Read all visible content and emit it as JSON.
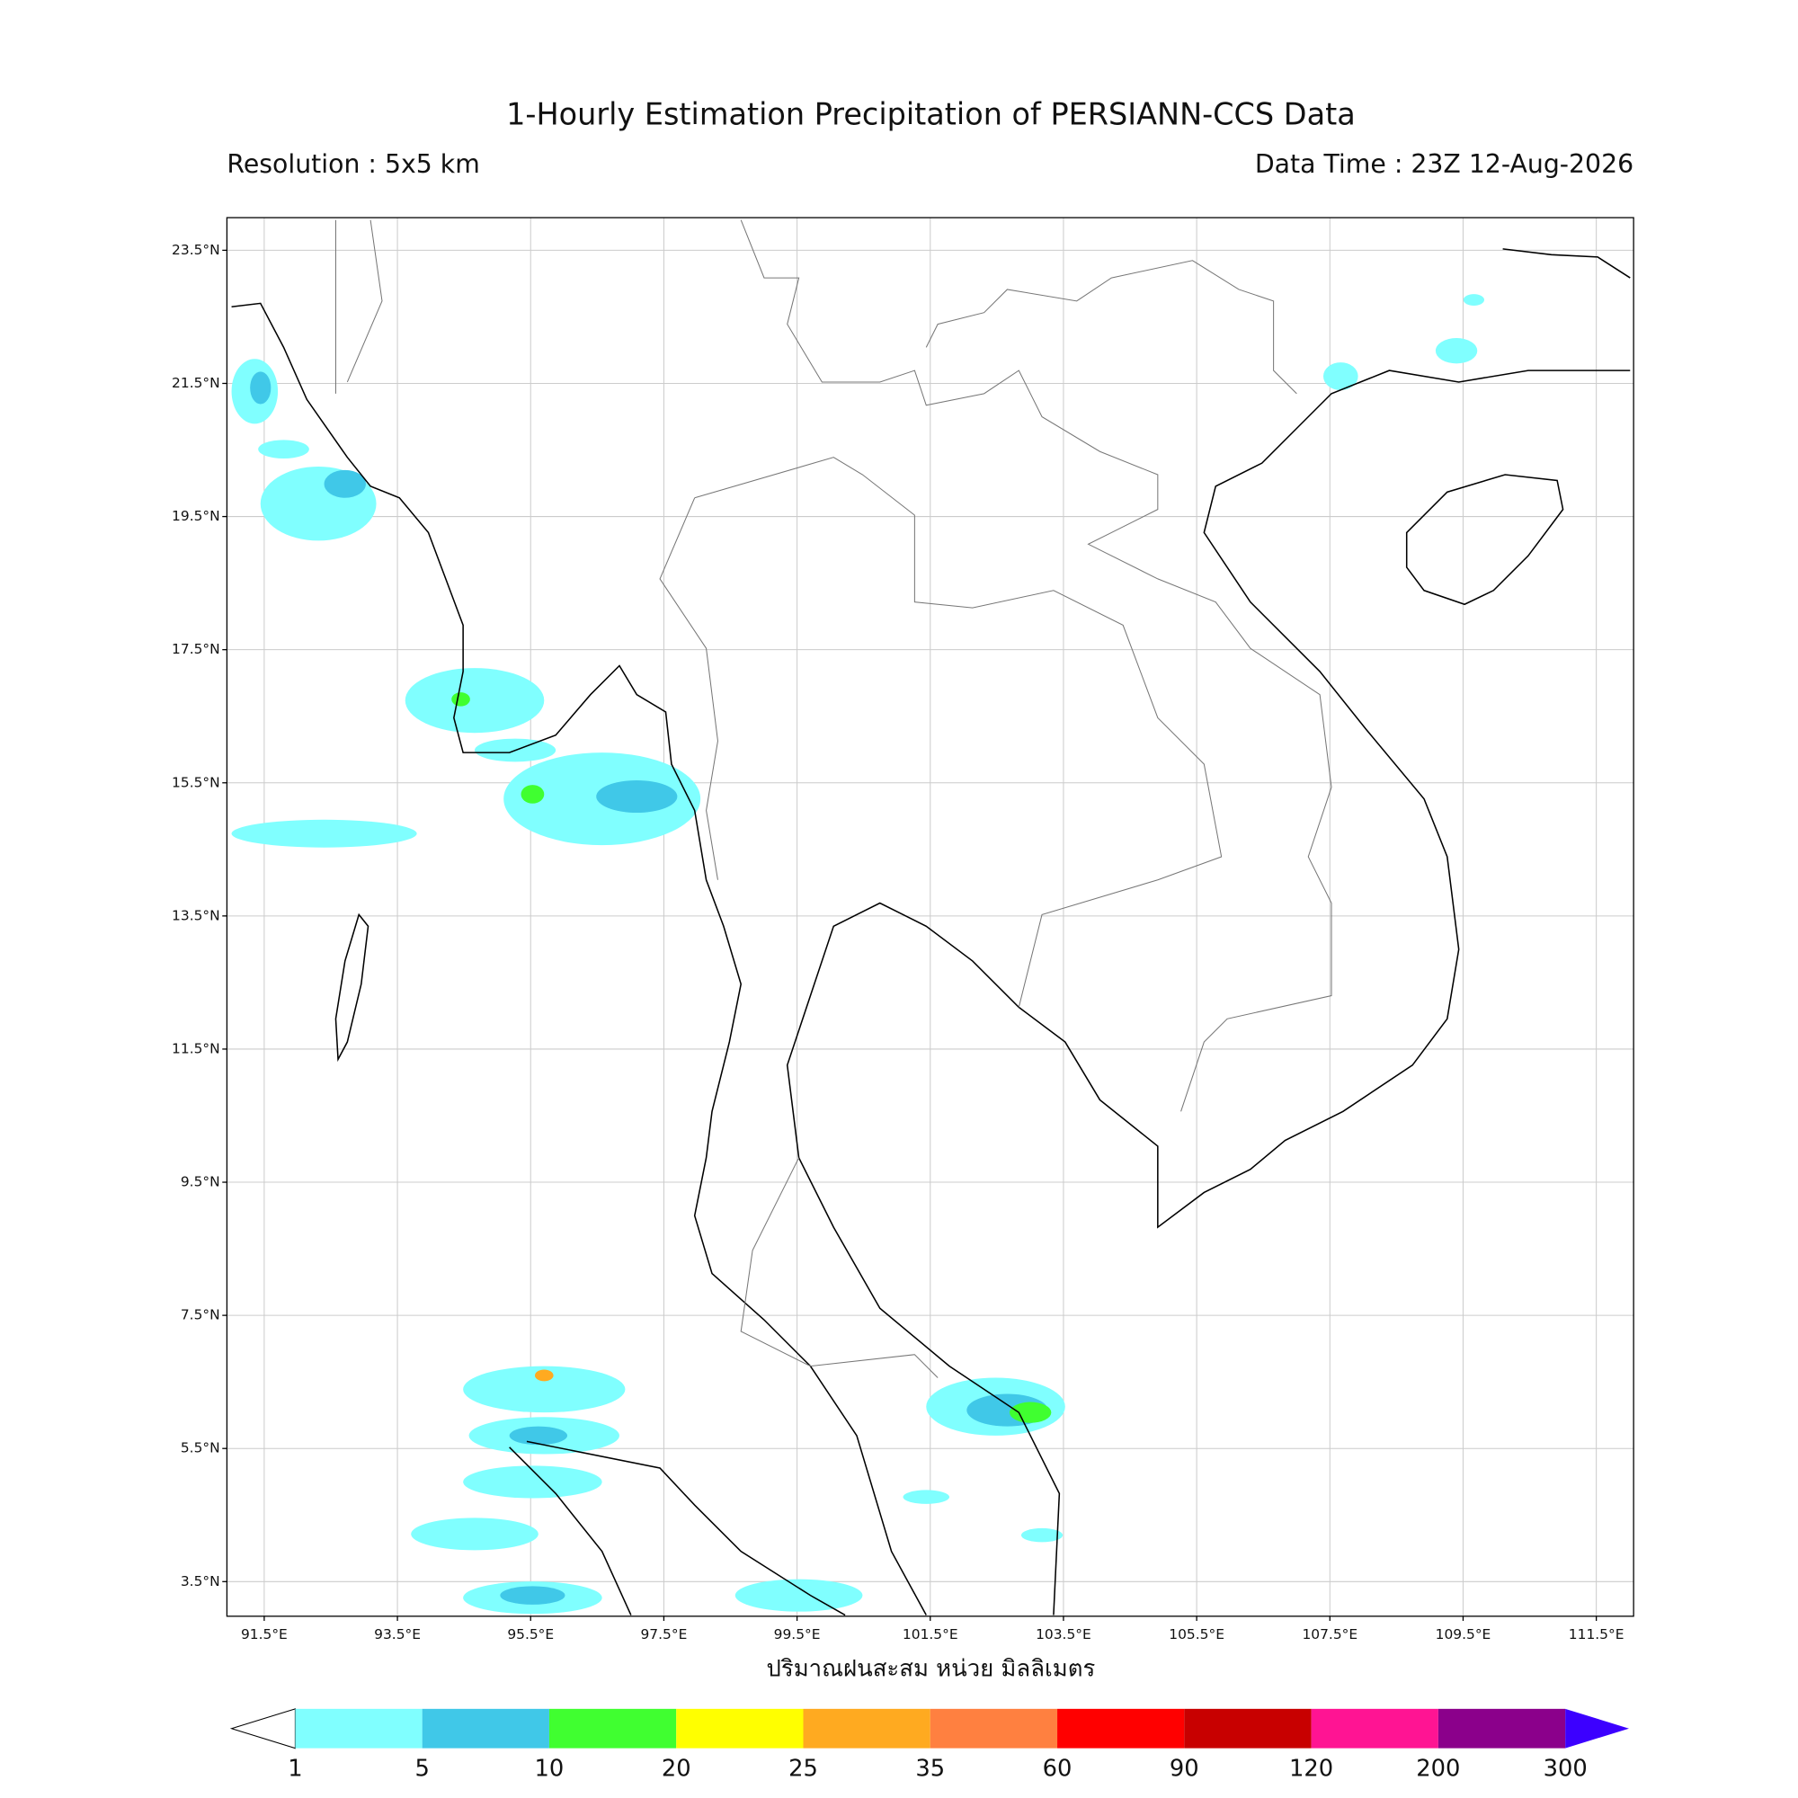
{
  "header": {
    "title": "1-Hourly Estimation Precipitation of PERSIANN-CCS Data",
    "resolution": "Resolution : 5x5 km",
    "data_time": "Data Time : 23Z 12-Aug-2026"
  },
  "map": {
    "lon_range": [
      90.94,
      112.06
    ],
    "lat_range": [
      2.98,
      23.99
    ],
    "lat_ticks": [
      {
        "value": 23.5,
        "label": "23.5°N"
      },
      {
        "value": 21.5,
        "label": "21.5°N"
      },
      {
        "value": 19.5,
        "label": "19.5°N"
      },
      {
        "value": 17.5,
        "label": "17.5°N"
      },
      {
        "value": 15.5,
        "label": "15.5°N"
      },
      {
        "value": 13.5,
        "label": "13.5°N"
      },
      {
        "value": 11.5,
        "label": "11.5°N"
      },
      {
        "value": 9.5,
        "label": "9.5°N"
      },
      {
        "value": 7.5,
        "label": "7.5°N"
      },
      {
        "value": 5.5,
        "label": "5.5°N"
      },
      {
        "value": 3.5,
        "label": "3.5°N"
      }
    ],
    "lon_ticks": [
      {
        "value": 91.5,
        "label": "91.5°E"
      },
      {
        "value": 93.5,
        "label": "93.5°E"
      },
      {
        "value": 95.5,
        "label": "95.5°E"
      },
      {
        "value": 97.5,
        "label": "97.5°E"
      },
      {
        "value": 99.5,
        "label": "99.5°E"
      },
      {
        "value": 101.5,
        "label": "101.5°E"
      },
      {
        "value": 103.5,
        "label": "103.5°E"
      },
      {
        "value": 105.5,
        "label": "105.5°E"
      },
      {
        "value": 107.5,
        "label": "107.5°E"
      },
      {
        "value": 109.5,
        "label": "109.5°E"
      },
      {
        "value": 111.5,
        "label": "111.5°E"
      }
    ],
    "x_label": "ปริมาณฝนสะสม หน่วย มิลลิเมตร"
  },
  "colorbar": {
    "levels": [
      1,
      5,
      10,
      20,
      25,
      35,
      60,
      90,
      120,
      200,
      300
    ],
    "colors": [
      "#80ffff",
      "#40c8e8",
      "#40ff30",
      "#ffff00",
      "#ffaa20",
      "#ff8040",
      "#ff0000",
      "#c80000",
      "#ff1493",
      "#8b008b"
    ],
    "under_color": "#ffffff",
    "over_color": "#3c00ff"
  }
}
